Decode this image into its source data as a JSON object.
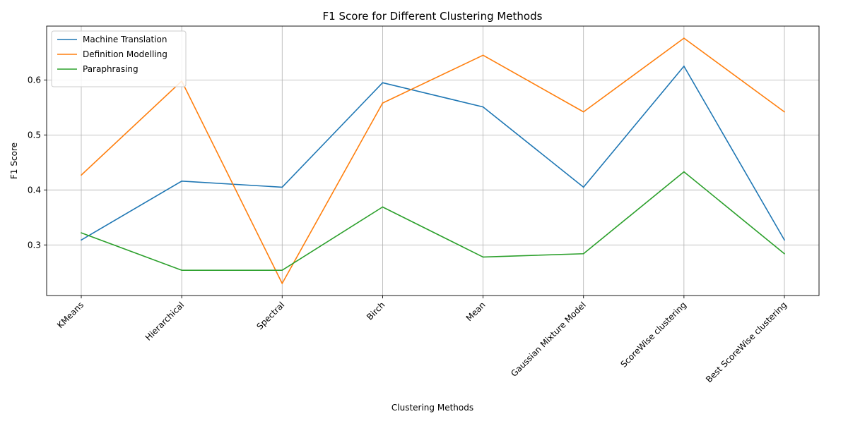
{
  "chart_data": {
    "type": "line",
    "title": "F1 Score for Different Clustering Methods",
    "xlabel": "Clustering Methods",
    "ylabel": "F1 Score",
    "categories": [
      "KMeans",
      "Hierarchical",
      "Spectral",
      "Birch",
      "Mean",
      "Gaussian Mixture Model",
      "ScoreWise clustering",
      "Best ScoreWise clustering"
    ],
    "series": [
      {
        "name": "Machine Translation",
        "color": "#1f77b4",
        "values": [
          0.309,
          0.416,
          0.405,
          0.595,
          0.551,
          0.405,
          0.625,
          0.309
        ]
      },
      {
        "name": "Definition Modelling",
        "color": "#ff7f0e",
        "values": [
          0.427,
          0.598,
          0.23,
          0.558,
          0.645,
          0.542,
          0.676,
          0.542
        ]
      },
      {
        "name": "Paraphrasing",
        "color": "#2ca02c",
        "values": [
          0.322,
          0.254,
          0.254,
          0.369,
          0.278,
          0.284,
          0.433,
          0.284
        ]
      }
    ],
    "yticks": [
      0.3,
      0.4,
      0.5,
      0.6
    ],
    "ytick_labels": [
      "0.3",
      "0.4",
      "0.5",
      "0.6"
    ],
    "ylim": [
      0.208,
      0.698
    ],
    "grid": true,
    "legend": "top-left"
  }
}
